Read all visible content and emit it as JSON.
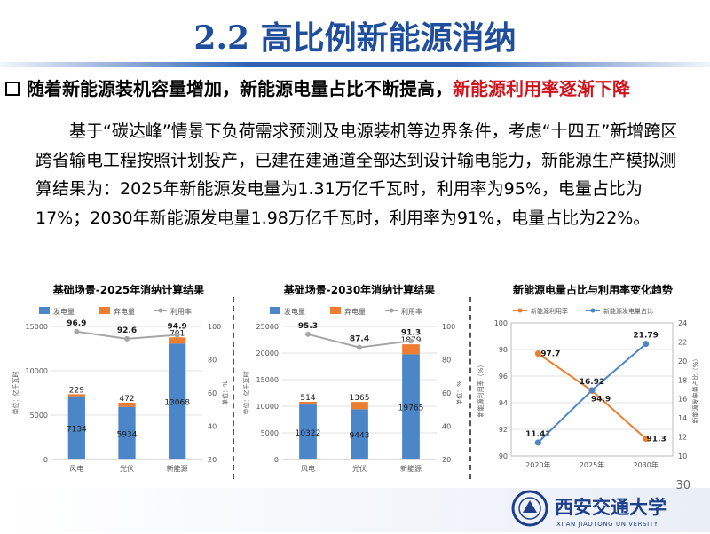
{
  "slide": {
    "title": "2.2 高比例新能源消纳",
    "bullet": {
      "lead": "随着新能源装机容量增加，新能源电量占比不断提高，",
      "highlight": "新能源利用率逐渐下降"
    },
    "paragraph": [
      "基于“碳达峰”情景下负荷需求预测及电源装机等边界条件，考虑“十四五”",
      "新增跨区跨省输电工程按照计划投产，已建在建通道全部达到设计输电能力，新",
      "能源生产模拟测算结果为：2025年新能源发电量为1.31万亿千瓦时，利用率为",
      "95%，电量占比为17%；2030年新能源发电量1.98万亿千瓦时，利用率为91%，",
      "电量占比为22%。"
    ],
    "page_number": "30",
    "footer": {
      "school_cn": "西安交通大学",
      "school_en": "XI'AN JIAOTONG UNIVERSITY"
    },
    "colors": {
      "title": "#1f4e9c",
      "highlight": "#d0121b",
      "blue": "#4a86c8",
      "orange": "#ed7d31",
      "gray": "#a5a5a5"
    }
  },
  "chart_data": [
    {
      "type": "bar",
      "title": "基础场景-2025年消纳计算结果",
      "categories": [
        "风电",
        "光伏",
        "新能源"
      ],
      "legend": [
        "发电量",
        "弃电量",
        "利用率"
      ],
      "series": [
        {
          "name": "发电量",
          "values": [
            7134,
            5934,
            13068
          ]
        },
        {
          "name": "弃电量",
          "values": [
            229,
            472,
            701
          ]
        },
        {
          "name": "利用率",
          "values": [
            96.9,
            92.6,
            94.9
          ]
        }
      ],
      "ylabel": "单位：亿千瓦时",
      "y2label": "单位：%",
      "ylim": [
        0,
        15000
      ],
      "yticks": [
        "0",
        "5000",
        "10000",
        "15000"
      ],
      "y2lim": [
        20,
        100
      ],
      "y2ticks": [
        "20",
        "40",
        "60",
        "80",
        "100"
      ]
    },
    {
      "type": "bar",
      "title": "基础场景-2030年消纳计算结果",
      "categories": [
        "风电",
        "光伏",
        "新能源"
      ],
      "legend": [
        "发电量",
        "弃电量",
        "利用率"
      ],
      "series": [
        {
          "name": "发电量",
          "values": [
            10322,
            9443,
            19765
          ]
        },
        {
          "name": "弃电量",
          "values": [
            514,
            1365,
            1879
          ]
        },
        {
          "name": "利用率",
          "values": [
            95.3,
            87.4,
            91.3
          ]
        }
      ],
      "ylabel": "单位：亿千瓦时",
      "y2label": "单位：%",
      "ylim": [
        0,
        25000
      ],
      "yticks": [
        "0",
        "5000",
        "10000",
        "15000",
        "20000",
        "25000"
      ],
      "y2lim": [
        20,
        100
      ],
      "y2ticks": [
        "20",
        "40",
        "60",
        "80",
        "100"
      ]
    },
    {
      "type": "line",
      "title": "新能源电量占比与利用率变化趋势",
      "categories": [
        "2020年",
        "2025年",
        "2030年"
      ],
      "legend": [
        "新能源利用率",
        "新能源发电量占比"
      ],
      "series": [
        {
          "name": "新能源利用率",
          "values": [
            97.7,
            94.9,
            91.3
          ]
        },
        {
          "name": "新能源发电量占比",
          "values": [
            11.41,
            16.92,
            21.79
          ]
        }
      ],
      "ylabel": "新能源利用率（%）",
      "y2label": "新能源发电量占比（%）",
      "ylim": [
        90,
        100
      ],
      "yticks": [
        "90",
        "92",
        "94",
        "96",
        "98",
        "100"
      ],
      "y2lim": [
        10,
        24
      ],
      "y2ticks": [
        "10",
        "12",
        "14",
        "16",
        "18",
        "20",
        "22",
        "24"
      ]
    }
  ]
}
